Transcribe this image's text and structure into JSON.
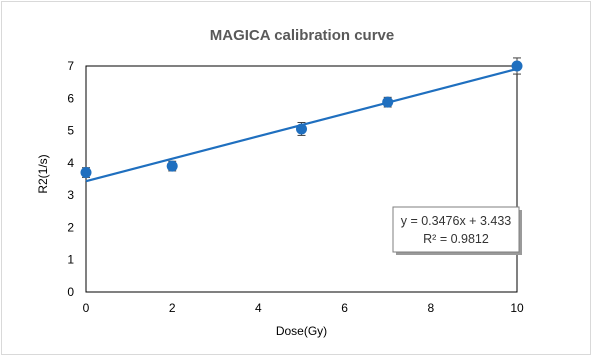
{
  "chart_data": {
    "type": "scatter",
    "title": "MAGICA calibration curve",
    "xlabel": "Dose(Gy)",
    "ylabel": "R2(1/s)",
    "xlim": [
      0,
      10
    ],
    "ylim": [
      0,
      7
    ],
    "xticks": [
      "0",
      "2",
      "4",
      "6",
      "8",
      "10"
    ],
    "yticks": [
      "0",
      "1",
      "2",
      "3",
      "4",
      "5",
      "6",
      "7"
    ],
    "series": [
      {
        "x": [
          0,
          2,
          5,
          7,
          10
        ],
        "y": [
          3.7,
          3.9,
          5.05,
          5.88,
          7.0
        ],
        "error": [
          0.15,
          0.15,
          0.2,
          0.15,
          0.25
        ],
        "color": "#1f6fbf"
      }
    ],
    "trendline": {
      "type": "linear",
      "slope": 0.3476,
      "intercept": 3.433,
      "color": "#1f6fbf"
    },
    "annotation": {
      "equation": "y = 0.3476x + 3.433",
      "r_squared": "R² = 0.9812",
      "placement": "bottom-right"
    },
    "grid": false
  }
}
